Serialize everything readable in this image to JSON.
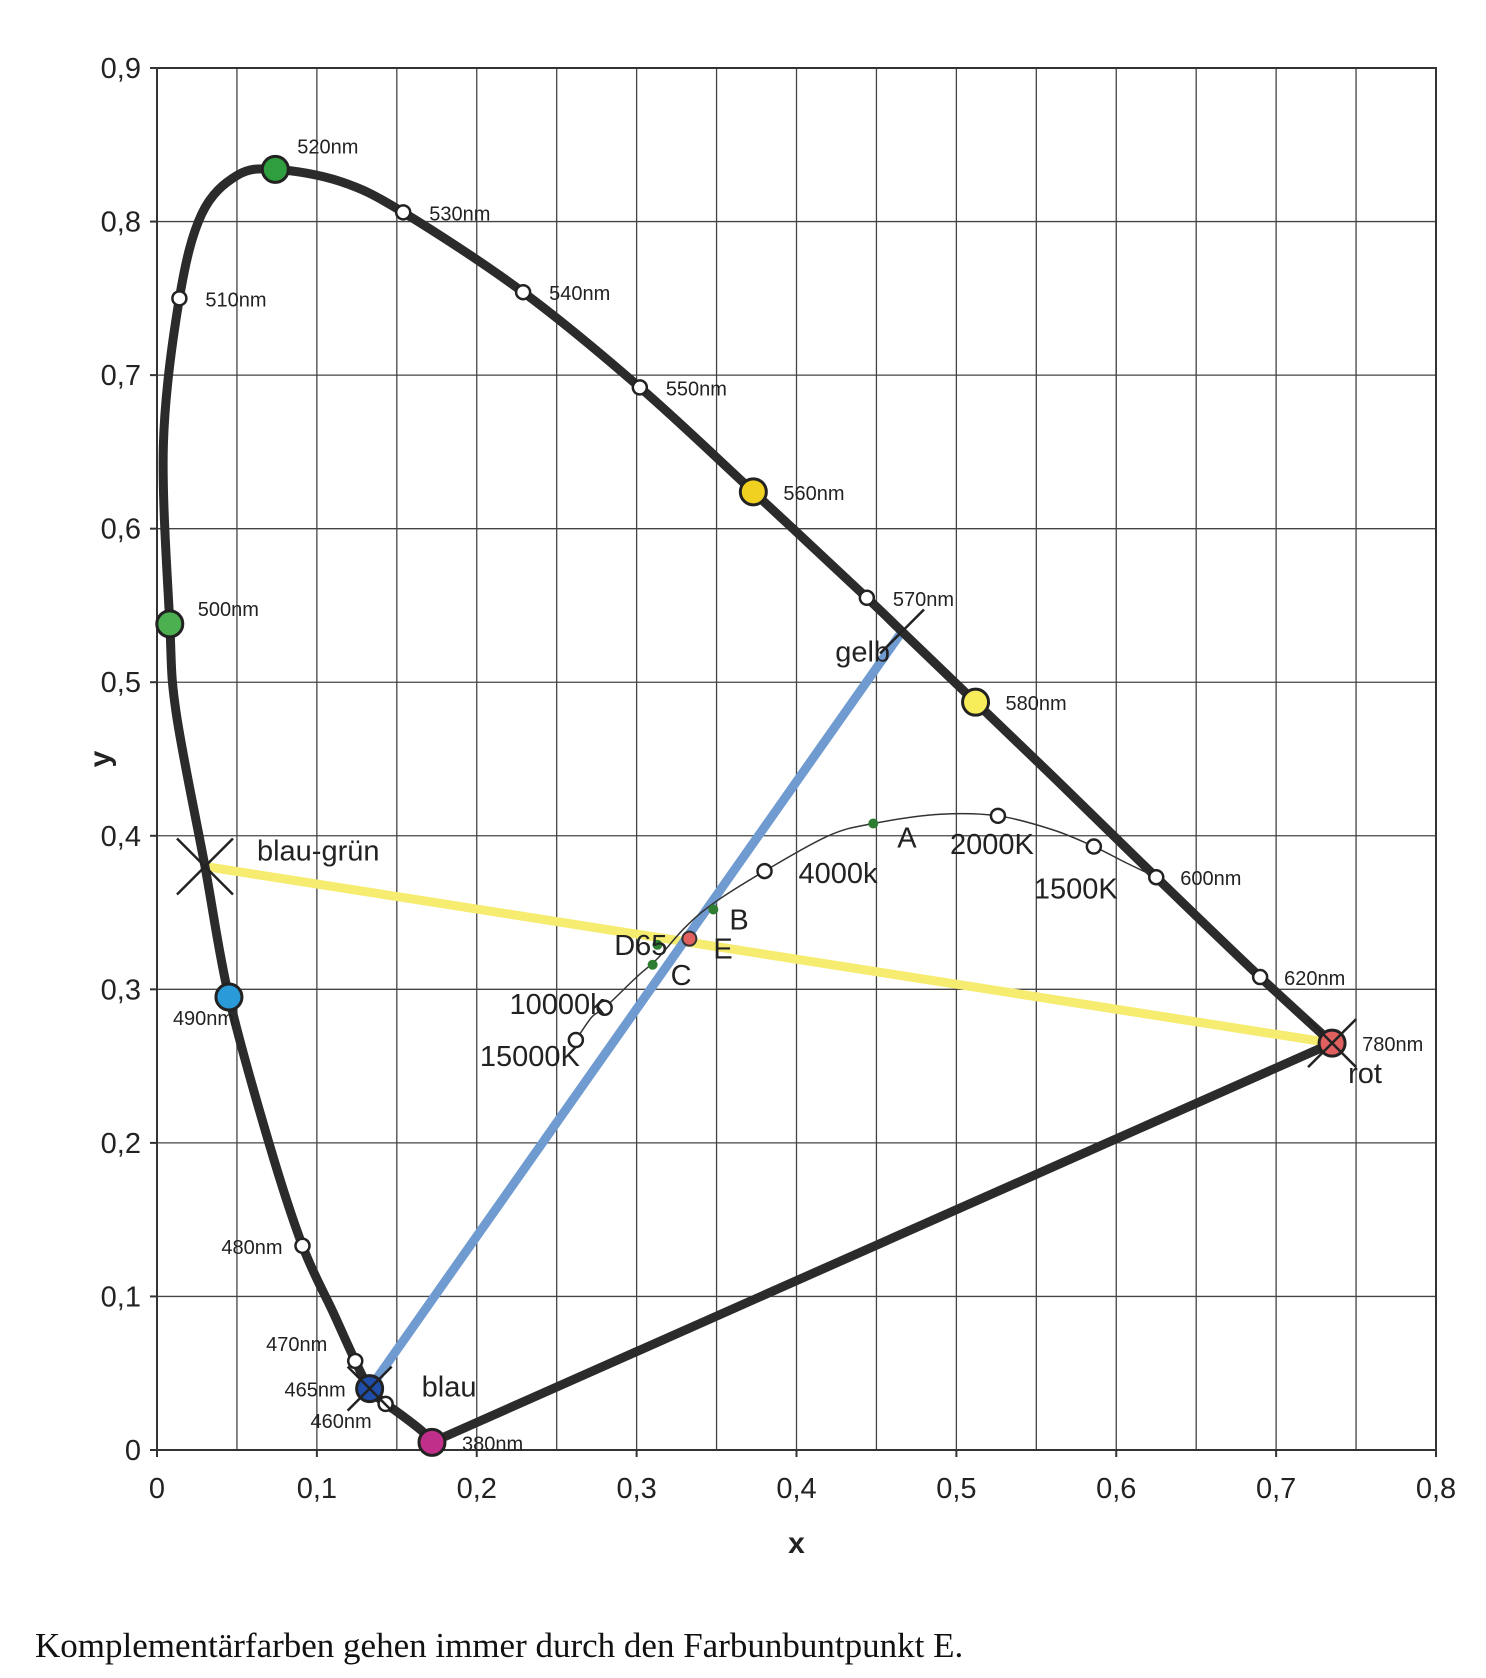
{
  "chart_data": {
    "type": "scatter",
    "title": "",
    "xlabel": "x",
    "ylabel": "y",
    "xlim": [
      0,
      0.8
    ],
    "ylim": [
      0,
      0.9
    ],
    "grid": true,
    "x_ticks": [
      "0",
      "0,1",
      "0,2",
      "0,3",
      "0,4",
      "0,5",
      "0,6",
      "0,7",
      "0,8"
    ],
    "y_ticks": [
      "0",
      "0,1",
      "0,2",
      "0,3",
      "0,4",
      "0,5",
      "0,6",
      "0,7",
      "0,8",
      "0,9"
    ],
    "spectral_locus": [
      [
        0.172,
        0.005
      ],
      [
        0.165,
        0.013
      ],
      [
        0.15,
        0.025
      ],
      [
        0.143,
        0.03
      ],
      [
        0.133,
        0.04
      ],
      [
        0.124,
        0.058
      ],
      [
        0.11,
        0.09
      ],
      [
        0.091,
        0.133
      ],
      [
        0.07,
        0.2
      ],
      [
        0.045,
        0.295
      ],
      [
        0.03,
        0.38
      ],
      [
        0.012,
        0.48
      ],
      [
        0.008,
        0.538
      ],
      [
        0.004,
        0.655
      ],
      [
        0.014,
        0.75
      ],
      [
        0.028,
        0.805
      ],
      [
        0.05,
        0.83
      ],
      [
        0.074,
        0.834
      ],
      [
        0.115,
        0.826
      ],
      [
        0.154,
        0.806
      ],
      [
        0.229,
        0.754
      ],
      [
        0.302,
        0.692
      ],
      [
        0.373,
        0.624
      ],
      [
        0.444,
        0.555
      ],
      [
        0.466,
        0.533
      ],
      [
        0.512,
        0.487
      ],
      [
        0.562,
        0.437
      ],
      [
        0.625,
        0.373
      ],
      [
        0.69,
        0.308
      ],
      [
        0.735,
        0.265
      ]
    ],
    "purple_line": [
      [
        0.172,
        0.005
      ],
      [
        0.735,
        0.265
      ]
    ],
    "wavelength_points": [
      {
        "label": "380nm",
        "x": 0.172,
        "y": 0.005,
        "color": "#c0308a",
        "big": true
      },
      {
        "label": "460nm",
        "x": 0.143,
        "y": 0.03,
        "color": "#ffffff",
        "big": false
      },
      {
        "label": "465nm",
        "x": 0.133,
        "y": 0.04,
        "color": "#1f4ea8",
        "big": true
      },
      {
        "label": "470nm",
        "x": 0.124,
        "y": 0.058,
        "color": "#ffffff",
        "big": false
      },
      {
        "label": "480nm",
        "x": 0.091,
        "y": 0.133,
        "color": "#ffffff",
        "big": false
      },
      {
        "label": "490nm",
        "x": 0.045,
        "y": 0.295,
        "color": "#2a9ad8",
        "big": true
      },
      {
        "label": "500nm",
        "x": 0.008,
        "y": 0.538,
        "color": "#4caf50",
        "big": true
      },
      {
        "label": "510nm",
        "x": 0.014,
        "y": 0.75,
        "color": "#ffffff",
        "big": false
      },
      {
        "label": "520nm",
        "x": 0.074,
        "y": 0.834,
        "color": "#2e9e3e",
        "big": true
      },
      {
        "label": "530nm",
        "x": 0.154,
        "y": 0.806,
        "color": "#ffffff",
        "big": false
      },
      {
        "label": "540nm",
        "x": 0.229,
        "y": 0.754,
        "color": "#ffffff",
        "big": false
      },
      {
        "label": "550nm",
        "x": 0.302,
        "y": 0.692,
        "color": "#ffffff",
        "big": false
      },
      {
        "label": "560nm",
        "x": 0.373,
        "y": 0.624,
        "color": "#f0d020",
        "big": true
      },
      {
        "label": "570nm",
        "x": 0.444,
        "y": 0.555,
        "color": "#ffffff",
        "big": false
      },
      {
        "label": "580nm",
        "x": 0.512,
        "y": 0.487,
        "color": "#f7ec5a",
        "big": true
      },
      {
        "label": "600nm",
        "x": 0.625,
        "y": 0.373,
        "color": "#ffffff",
        "big": false
      },
      {
        "label": "620nm",
        "x": 0.69,
        "y": 0.308,
        "color": "#ffffff",
        "big": false
      },
      {
        "label": "780nm",
        "x": 0.735,
        "y": 0.265,
        "color": "#e06060",
        "big": true
      }
    ],
    "planckian_locus": [
      [
        0.262,
        0.267
      ],
      [
        0.272,
        0.282
      ],
      [
        0.28,
        0.288
      ],
      [
        0.3,
        0.308
      ],
      [
        0.313,
        0.32
      ],
      [
        0.33,
        0.34
      ],
      [
        0.348,
        0.356
      ],
      [
        0.38,
        0.377
      ],
      [
        0.42,
        0.4
      ],
      [
        0.448,
        0.408
      ],
      [
        0.49,
        0.414
      ],
      [
        0.526,
        0.413
      ],
      [
        0.56,
        0.404
      ],
      [
        0.586,
        0.393
      ],
      [
        0.605,
        0.383
      ],
      [
        0.625,
        0.373
      ]
    ],
    "color_temperatures": [
      {
        "label": "15000K",
        "x": 0.262,
        "y": 0.267
      },
      {
        "label": "10000k",
        "x": 0.28,
        "y": 0.288
      },
      {
        "label": "4000k",
        "x": 0.38,
        "y": 0.377
      },
      {
        "label": "2000K",
        "x": 0.526,
        "y": 0.413
      },
      {
        "label": "1500K",
        "x": 0.586,
        "y": 0.393
      }
    ],
    "illuminants": [
      {
        "label": "A",
        "x": 0.448,
        "y": 0.408,
        "color": "#2e7d32"
      },
      {
        "label": "B",
        "x": 0.348,
        "y": 0.352,
        "color": "#2e7d32"
      },
      {
        "label": "C",
        "x": 0.31,
        "y": 0.316,
        "color": "#2e7d32"
      },
      {
        "label": "D65",
        "x": 0.313,
        "y": 0.329,
        "color": "#2e7d32"
      },
      {
        "label": "E",
        "x": 0.333,
        "y": 0.333,
        "color": "#e06060"
      }
    ],
    "complementary_lines": [
      {
        "from": [
          0.03,
          0.38
        ],
        "to": [
          0.735,
          0.265
        ],
        "color": "#f5ec70",
        "from_label": "blau-grün",
        "to_label": "rot"
      },
      {
        "from": [
          0.133,
          0.04
        ],
        "to": [
          0.466,
          0.533
        ],
        "color": "#6f9bd1",
        "from_label": "blau",
        "to_label": "gelb"
      }
    ]
  },
  "caption": "Komplementärfarben gehen immer durch den Farbunbuntpunkt E."
}
